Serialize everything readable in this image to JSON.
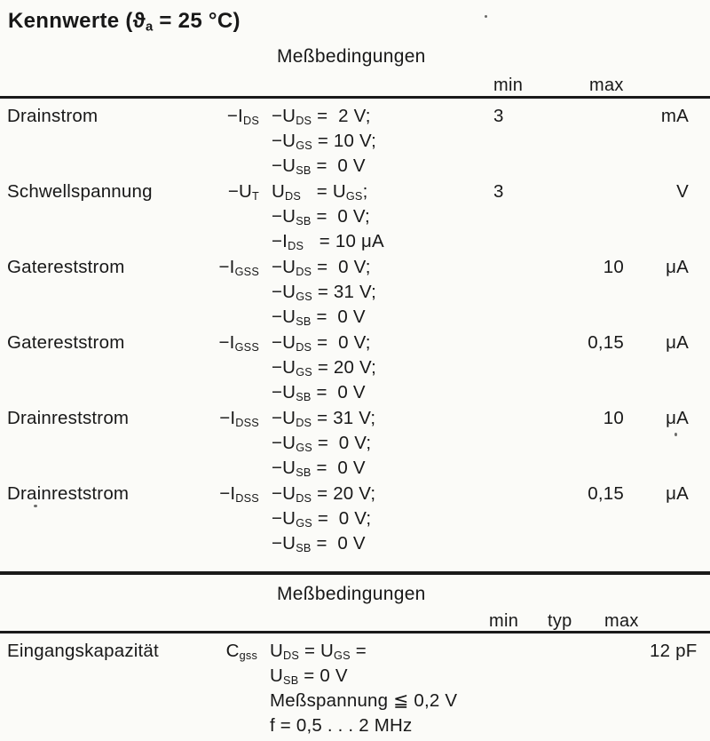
{
  "title": "Kennwerte (ϑ[a] = 25 °C)",
  "table1": {
    "header": {
      "messbedingungen": "Meßbedingungen",
      "min": "min",
      "max": "max"
    },
    "rows": [
      {
        "name": "Drainstrom",
        "symbol": "−I[DS]",
        "conditions": [
          "−U[DS] =  2 V;",
          "−U[GS] = 10 V;",
          "−U[SB] =  0 V"
        ],
        "min": "3",
        "max": "",
        "unit": "mA"
      },
      {
        "name": "Schwellspannung",
        "symbol": "−U[T]",
        "conditions": [
          "U[DS]   = U[GS];",
          "−U[SB] =  0 V;",
          "−I[DS]   = 10 μA"
        ],
        "min": "3",
        "max": "",
        "unit": "V"
      },
      {
        "name": "Gatereststrom",
        "symbol": "−I[GSS]",
        "conditions": [
          "−U[DS] =  0 V;",
          "−U[GS] = 31 V;",
          "−U[SB] =  0 V"
        ],
        "min": "",
        "max": "10",
        "unit": "μA"
      },
      {
        "name": "Gatereststrom",
        "symbol": "−I[GSS]",
        "conditions": [
          "−U[DS] =  0 V;",
          "−U[GS] = 20 V;",
          "−U[SB] =  0 V"
        ],
        "min": "",
        "max": "0,15",
        "unit": "μA"
      },
      {
        "name": "Drainreststrom",
        "symbol": "−I[DSS]",
        "conditions": [
          "−U[DS] = 31 V;",
          "−U[GS] =  0 V;",
          "−U[SB] =  0 V"
        ],
        "min": "",
        "max": "10",
        "unit": "μA"
      },
      {
        "name": "Drainreststrom",
        "symbol": "−I[DSS]",
        "conditions": [
          "−U[DS] = 20 V;",
          "−U[GS] =  0 V;",
          "−U[SB] =  0 V"
        ],
        "min": "",
        "max": "0,15",
        "unit": "μA"
      }
    ]
  },
  "table2": {
    "header": {
      "messbedingungen": "Meßbedingungen",
      "min": "min",
      "typ": "typ",
      "max": "max"
    },
    "rows": [
      {
        "name": "Eingangskapazität",
        "symbol": "C[gss]",
        "conditions": [
          "U[DS] = U[GS] =",
          "U[SB] = 0 V",
          "Meßspannung ≦ 0,2 V",
          "f = 0,5 . . . 2 MHz"
        ],
        "min": "",
        "typ": "",
        "max": "12 pF",
        "unit": ""
      }
    ]
  }
}
